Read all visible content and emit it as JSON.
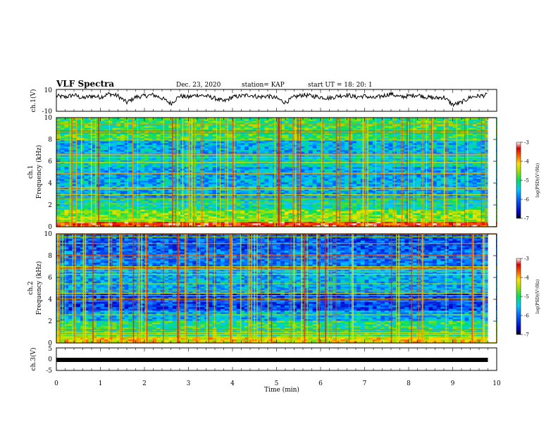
{
  "header": {
    "title": "VLF Spectra",
    "date": "Dec. 23, 2020",
    "station": "station= KAP",
    "start": "start  UT =   18: 20: 1"
  },
  "chart_data": [
    {
      "type": "line",
      "ylabel": "ch.1(V)",
      "ylim": [
        -10,
        10
      ],
      "yticks": [
        "10",
        "-10"
      ],
      "xlim": [
        0,
        10
      ],
      "description_series": "ch1 waveform envelope (noisy, mostly between 0 and 7 V with dips to -10)",
      "series": [
        {
          "x": [
            0,
            0.2,
            0.4,
            0.6,
            0.8,
            1.0,
            1.2,
            1.4,
            1.6,
            1.8,
            2.0,
            2.2,
            2.4,
            2.6,
            2.8,
            3.0,
            3.2,
            3.4,
            3.6,
            3.8,
            4.0,
            4.2,
            4.4,
            4.6,
            4.8,
            5.0,
            5.2,
            5.4,
            5.6,
            5.8,
            6.0,
            6.2,
            6.4,
            6.6,
            6.8,
            7.0,
            7.2,
            7.4,
            7.6,
            7.8,
            8.0,
            8.2,
            8.4,
            8.6,
            8.8,
            9.0,
            9.2,
            9.4,
            9.6,
            9.8
          ],
          "values": [
            4,
            3,
            5,
            2,
            4,
            3,
            6,
            4,
            -2,
            3,
            4,
            5,
            2,
            -3,
            4,
            3,
            5,
            4,
            2,
            -1,
            3,
            4,
            5,
            3,
            4,
            2,
            -2,
            3,
            5,
            4,
            3,
            2,
            4,
            5,
            3,
            4,
            2,
            4,
            6,
            3,
            4,
            5,
            3,
            2,
            3,
            -4,
            -2,
            3,
            4,
            5
          ]
        }
      ]
    },
    {
      "type": "heatmap",
      "ylabel": "ch.1\nFrequency (kHz)",
      "ylim": [
        0,
        10
      ],
      "yticks": [
        "0",
        "2",
        "4",
        "6",
        "8",
        "10"
      ],
      "xlim": [
        0,
        10
      ],
      "colorbar": {
        "label": "log(PSD)(V²/Hz)",
        "ticks": [
          "-3",
          "-4",
          "-5",
          "-6",
          "-7"
        ],
        "range": [
          -7,
          -3
        ]
      },
      "description_bands": "log PSD by frequency band (kHz), typical level",
      "bands": [
        {
          "f": [
            0,
            0.5
          ],
          "level": -3.5
        },
        {
          "f": [
            0.5,
            1.5
          ],
          "level": -4.6
        },
        {
          "f": [
            1.5,
            2.5
          ],
          "level": -5.2
        },
        {
          "f": [
            2.5,
            5.5
          ],
          "level": -5.6
        },
        {
          "f": [
            5.5,
            6.5
          ],
          "level": -5.3
        },
        {
          "f": [
            6.5,
            8.0
          ],
          "level": -5.6
        },
        {
          "f": [
            8.0,
            10
          ],
          "level": -4.9
        }
      ]
    },
    {
      "type": "heatmap",
      "ylabel": "ch.2\nFrequency (kHz)",
      "ylim": [
        0,
        10
      ],
      "yticks": [
        "0",
        "2",
        "4",
        "6",
        "8",
        "10"
      ],
      "xlim": [
        0,
        10
      ],
      "colorbar": {
        "label": "log(PSD)(V²/Hz)",
        "ticks": [
          "-3",
          "-4",
          "-5",
          "-6",
          "-7"
        ],
        "range": [
          -7,
          -3
        ]
      },
      "bands": [
        {
          "f": [
            0,
            0.6
          ],
          "level": -4.2
        },
        {
          "f": [
            0.6,
            2.0
          ],
          "level": -5.0
        },
        {
          "f": [
            2.0,
            3.0
          ],
          "level": -5.6
        },
        {
          "f": [
            3.0,
            4.5
          ],
          "level": -6.2
        },
        {
          "f": [
            4.5,
            7.0
          ],
          "level": -5.6
        },
        {
          "f": [
            7.0,
            8.5
          ],
          "level": -5.9
        },
        {
          "f": [
            8.5,
            10
          ],
          "level": -6.1
        }
      ]
    },
    {
      "type": "line",
      "ylabel": "ch.3(V)",
      "ylim": [
        -5,
        5
      ],
      "yticks": [
        "5",
        "0",
        "-5"
      ],
      "xlim": [
        0,
        10
      ],
      "series": [
        {
          "x": [
            0,
            9.8
          ],
          "values": [
            0,
            0
          ]
        }
      ],
      "xlabel": "Time (min)",
      "xticks": [
        "0",
        "1",
        "2",
        "3",
        "4",
        "5",
        "6",
        "7",
        "8",
        "9",
        "10"
      ]
    }
  ]
}
